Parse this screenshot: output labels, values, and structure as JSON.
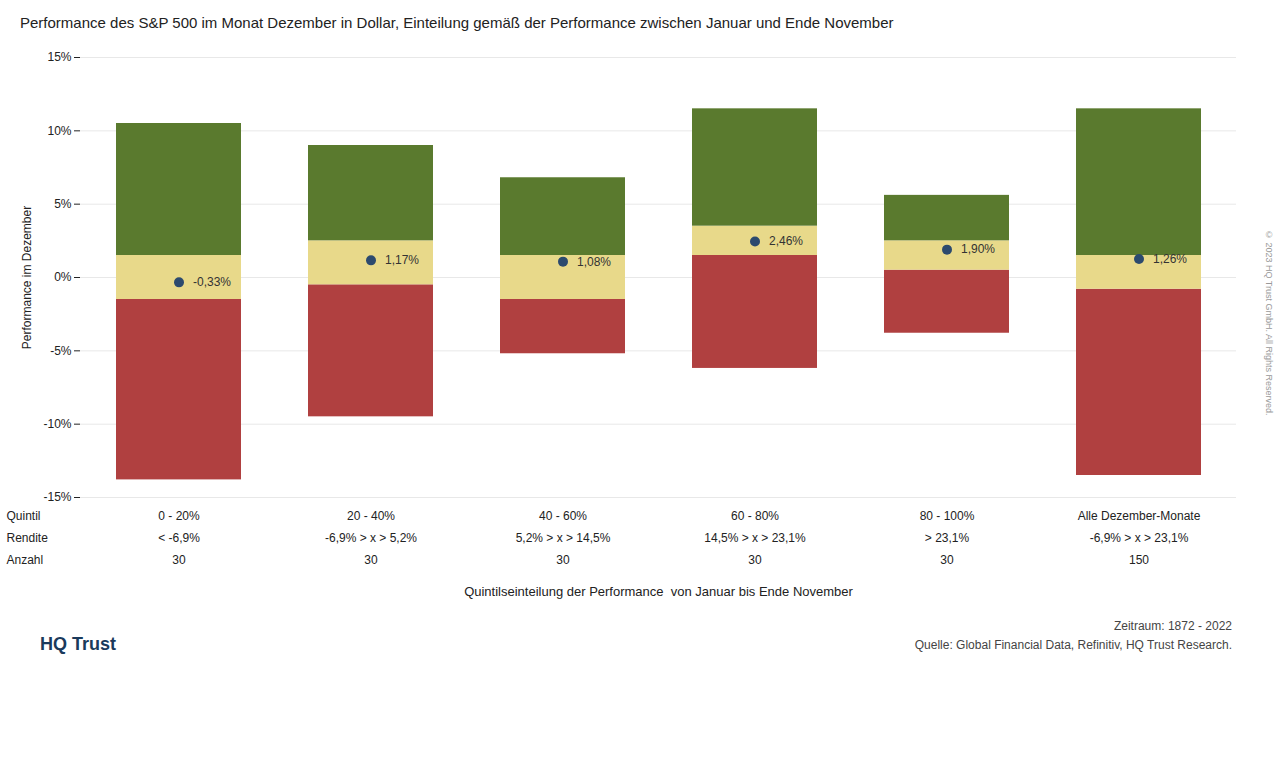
{
  "chart_data": {
    "type": "bar",
    "title": "Performance des S&P 500 im Monat Dezember in Dollar, Einteilung gemäß der Performance zwischen Januar und Ende November",
    "ylabel": "Performance im Dezember",
    "xlabel": "Quintilseinteilung der Performance  von Januar bis Ende November",
    "categories": [
      "0 - 20%",
      "20 - 40%",
      "40 - 60%",
      "60 - 80%",
      "80 - 100%",
      "Alle Dezember-Monate"
    ],
    "row_labels": [
      "Quintil",
      "Rendite",
      "Anzahl"
    ],
    "rendite": [
      "< -6,9%",
      "-6,9% > x > 5,2%",
      "5,2% > x > 14,5%",
      "14,5% > x > 23,1%",
      "> 23,1%",
      "-6,9% > x > 23,1%"
    ],
    "anzahl": [
      30,
      30,
      30,
      30,
      30,
      150
    ],
    "series": [
      {
        "type": "bar",
        "color": "#b04040",
        "bottom": [
          -13.8,
          -9.5,
          -5.2,
          -6.2,
          -3.8,
          -13.5
        ],
        "top": [
          -1.5,
          -0.5,
          -1.5,
          1.5,
          0.5,
          -0.8
        ]
      },
      {
        "type": "bar",
        "color": "#e8d98a",
        "bottom": [
          -1.5,
          -0.5,
          -1.5,
          1.5,
          0.5,
          -0.8
        ],
        "top": [
          1.5,
          2.5,
          1.5,
          3.5,
          2.5,
          1.5
        ]
      },
      {
        "type": "bar",
        "color": "#5a7a2e",
        "bottom": [
          1.5,
          2.5,
          1.5,
          3.5,
          2.5,
          1.5
        ],
        "top": [
          10.5,
          9.0,
          6.8,
          11.5,
          5.6,
          11.5
        ]
      },
      {
        "type": "scatter",
        "color": "#2c4a6e",
        "marker": "circle",
        "values": [
          -0.33,
          1.17,
          1.08,
          2.46,
          1.9,
          1.26
        ],
        "value_labels": [
          "-0,33%",
          "1,17%",
          "1,08%",
          "2,46%",
          "1,90%",
          "1,26%"
        ]
      }
    ],
    "data_labels": true,
    "ylim": [
      -15,
      15
    ],
    "yticks": [
      {
        "value": -15,
        "label": "-15%"
      },
      {
        "value": -10,
        "label": "-10%"
      },
      {
        "value": -5,
        "label": "-5%"
      },
      {
        "value": 0,
        "label": "0%"
      },
      {
        "value": 5,
        "label": "5%"
      },
      {
        "value": 10,
        "label": "10%"
      },
      {
        "value": 15,
        "label": "15%"
      }
    ],
    "grid": true,
    "period_text": "Zeitraum: 1872 - 2022",
    "source_text": "Quelle: Global Financial Data, Refinitiv, HQ Trust Research.",
    "copyright_text": "© 2023 HQ Trust GmbH. All Rights Reserved.",
    "logo_text": "HQ Trust"
  }
}
